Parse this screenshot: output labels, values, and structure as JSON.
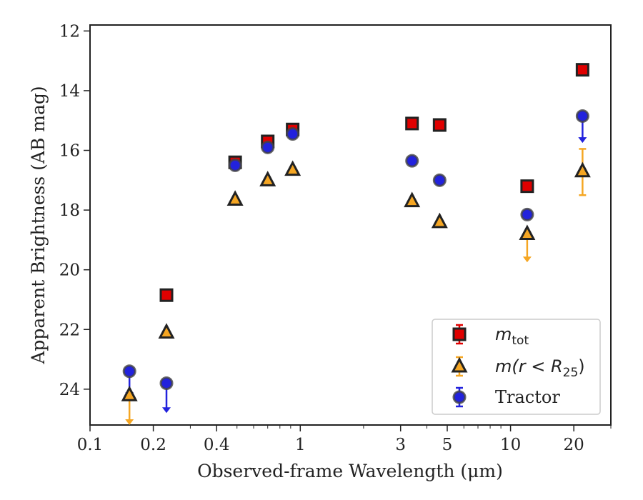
{
  "chart_data": {
    "type": "scatter",
    "title": "",
    "xlabel": "Observed-frame Wavelength (μm)",
    "ylabel": "Apparent Brightness (AB mag)",
    "xscale": "log",
    "xlim": [
      0.1,
      30
    ],
    "ylim": [
      25.2,
      11.8
    ],
    "y_inverted": true,
    "grid": false,
    "legend_position": "lower-right",
    "xticks": [
      {
        "value": 0.1,
        "label": "0.1"
      },
      {
        "value": 0.2,
        "label": "0.2"
      },
      {
        "value": 0.4,
        "label": "0.4"
      },
      {
        "value": 1,
        "label": "1"
      },
      {
        "value": 3,
        "label": "3"
      },
      {
        "value": 5,
        "label": "5"
      },
      {
        "value": 10,
        "label": "10"
      },
      {
        "value": 20,
        "label": "20"
      }
    ],
    "yticks": [
      {
        "value": 12,
        "label": "12"
      },
      {
        "value": 14,
        "label": "14"
      },
      {
        "value": 16,
        "label": "16"
      },
      {
        "value": 18,
        "label": "18"
      },
      {
        "value": 20,
        "label": "20"
      },
      {
        "value": 22,
        "label": "22"
      },
      {
        "value": 24,
        "label": "24"
      }
    ],
    "series": [
      {
        "name": "m_tot",
        "legend_main": "m",
        "legend_sub": "tot",
        "marker": "square",
        "color": "#e00000",
        "edge": "#222222",
        "points": [
          {
            "x": 0.231,
            "y": 20.85
          },
          {
            "x": 0.49,
            "y": 16.4
          },
          {
            "x": 0.7,
            "y": 15.7
          },
          {
            "x": 0.92,
            "y": 15.3
          },
          {
            "x": 3.4,
            "y": 15.1
          },
          {
            "x": 4.6,
            "y": 15.15
          },
          {
            "x": 12.0,
            "y": 17.2
          },
          {
            "x": 22.0,
            "y": 13.3
          }
        ]
      },
      {
        "name": "m(r < R25)",
        "legend_main": "m(r < R",
        "legend_sub": "25",
        "legend_close": ")",
        "marker": "triangle",
        "color": "#f5a623",
        "edge": "#222222",
        "points": [
          {
            "x": 0.154,
            "y": 24.2,
            "upper_limit": true,
            "arrow_to": 25.2
          },
          {
            "x": 0.231,
            "y": 22.1
          },
          {
            "x": 0.49,
            "y": 17.65
          },
          {
            "x": 0.7,
            "y": 17.0
          },
          {
            "x": 0.92,
            "y": 16.65
          },
          {
            "x": 3.4,
            "y": 17.7
          },
          {
            "x": 4.6,
            "y": 18.4
          },
          {
            "x": 12.0,
            "y": 18.8,
            "upper_limit": true,
            "arrow_to": 19.75
          },
          {
            "x": 22.0,
            "y": 16.7,
            "err_low": 15.95,
            "err_high": 17.5
          }
        ]
      },
      {
        "name": "Tractor",
        "legend_main": "Tractor",
        "marker": "circle",
        "color": "#2222dd",
        "edge": "#444444",
        "points": [
          {
            "x": 0.154,
            "y": 23.4,
            "upper_limit": true,
            "arrow_to": 24.3
          },
          {
            "x": 0.231,
            "y": 23.8,
            "upper_limit": true,
            "arrow_to": 24.8
          },
          {
            "x": 0.49,
            "y": 16.5
          },
          {
            "x": 0.7,
            "y": 15.9
          },
          {
            "x": 0.92,
            "y": 15.45
          },
          {
            "x": 3.4,
            "y": 16.35
          },
          {
            "x": 4.6,
            "y": 17.0
          },
          {
            "x": 12.0,
            "y": 18.15
          },
          {
            "x": 22.0,
            "y": 14.85,
            "upper_limit": true,
            "arrow_to": 15.75
          }
        ]
      }
    ]
  }
}
